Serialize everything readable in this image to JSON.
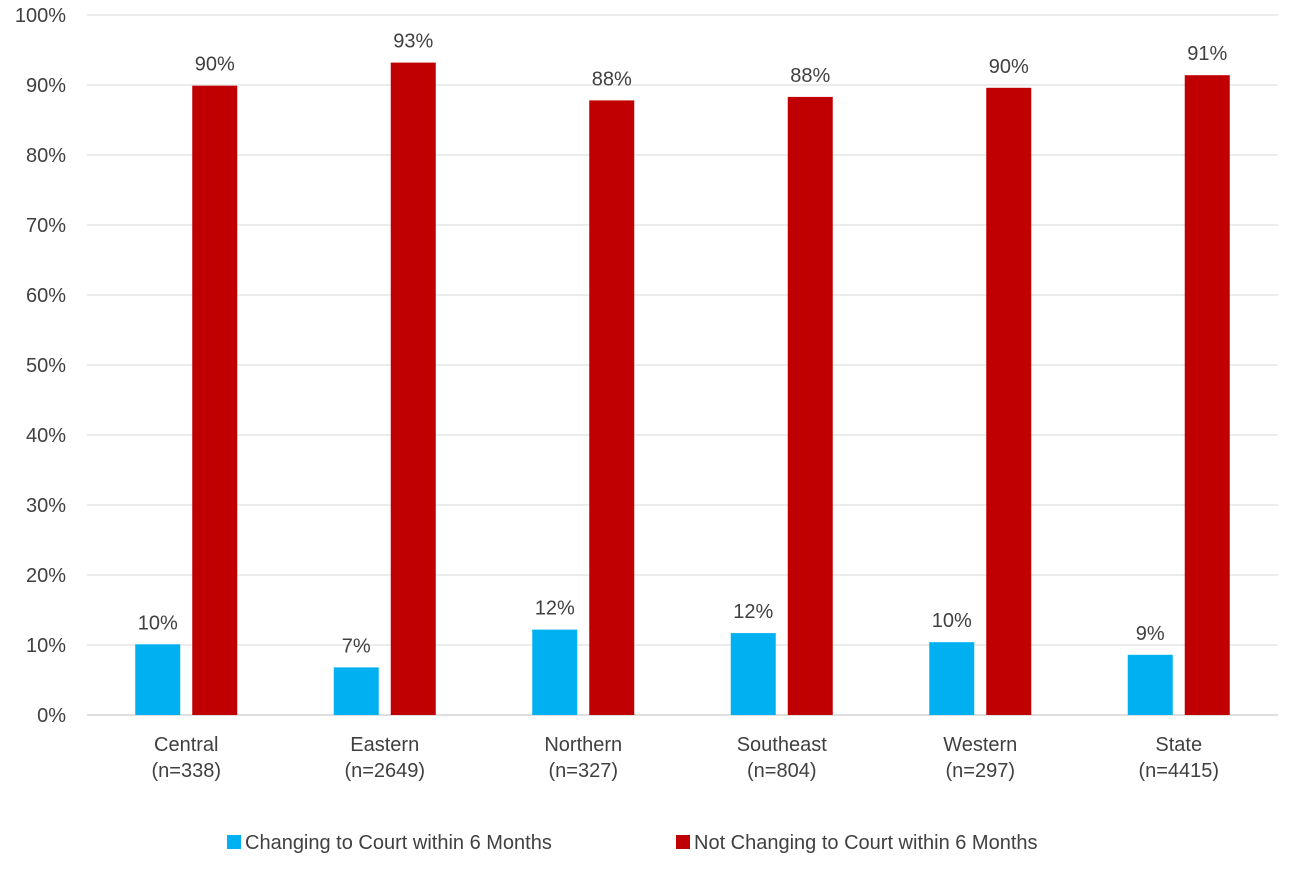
{
  "chart_data": {
    "type": "bar",
    "title": "",
    "xlabel": "",
    "ylabel": "",
    "ylim": [
      0,
      100
    ],
    "y_ticks": [
      0,
      10,
      20,
      30,
      40,
      50,
      60,
      70,
      80,
      90,
      100
    ],
    "y_tick_format": "percent",
    "grid": "horizontal",
    "legend_position": "bottom",
    "categories": [
      {
        "name": "Central",
        "n": "(n=338)"
      },
      {
        "name": "Eastern",
        "n": "(n=2649)"
      },
      {
        "name": "Northern",
        "n": "(n=327)"
      },
      {
        "name": "Southeast",
        "n": "(n=804)"
      },
      {
        "name": "Western",
        "n": "(n=297)"
      },
      {
        "name": "State",
        "n": "(n=4415)"
      }
    ],
    "series": [
      {
        "name": "Changing to Court within 6 Months",
        "color": "#00B0F0",
        "values": [
          10.1,
          6.8,
          12.2,
          11.7,
          10.4,
          8.6
        ],
        "labels": [
          "10%",
          "7%",
          "12%",
          "12%",
          "10%",
          "9%"
        ]
      },
      {
        "name": "Not Changing to Court within 6 Months",
        "color": "#C00000",
        "values": [
          89.9,
          93.2,
          87.8,
          88.3,
          89.6,
          91.4
        ],
        "labels": [
          "90%",
          "93%",
          "88%",
          "88%",
          "90%",
          "91%"
        ]
      }
    ]
  },
  "colors": {
    "grid": "#D9D9D9",
    "text": "#404040",
    "axis": "#BFBFBF"
  }
}
